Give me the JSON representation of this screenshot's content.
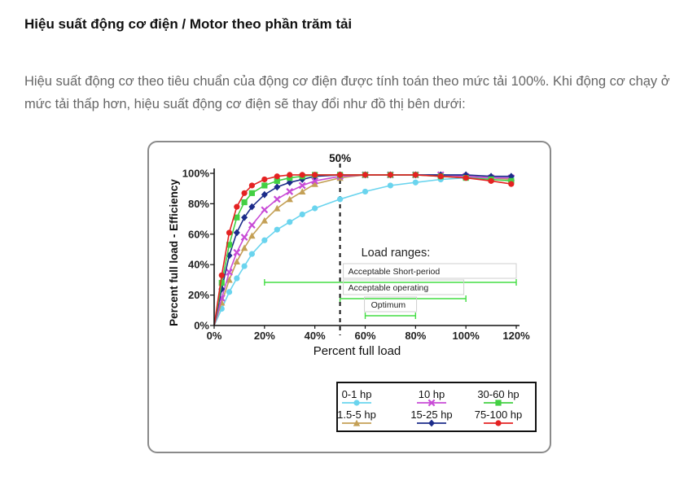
{
  "heading": "Hiệu suất động cơ điện / Motor theo phần trăm tải",
  "paragraph": "Hiệu suất động cơ theo tiêu chuẩn của động cơ điện được tính toán theo mức tải 100%. Khi động cơ chạy ở mức tải thấp hơn, hiệu suất động cơ điện sẽ thay đổi như đồ thị bên dưới:",
  "chart_data": {
    "type": "line",
    "title": "",
    "xlabel": "Percent full load",
    "ylabel": "Percent full load - Efficiency",
    "xlim": [
      0,
      120
    ],
    "ylim": [
      0,
      100
    ],
    "x_ticks": [
      0,
      20,
      40,
      60,
      80,
      100,
      120
    ],
    "x_tick_labels": [
      "0%",
      "20%",
      "40%",
      "60%",
      "80%",
      "100%",
      "120%"
    ],
    "y_ticks": [
      0,
      20,
      40,
      60,
      80,
      100
    ],
    "y_tick_labels": [
      "0%",
      "20%",
      "40%",
      "60%",
      "80%",
      "100%"
    ],
    "grid": false,
    "legend_position": "bottom-right",
    "series": [
      {
        "name": "0-1 hp",
        "color": "#6ad4ee",
        "marker": "circle",
        "x": [
          0,
          3,
          6,
          9,
          12,
          15,
          20,
          25,
          30,
          35,
          40,
          50,
          60,
          70,
          80,
          90,
          100,
          110,
          118
        ],
        "y": [
          0,
          11,
          22,
          31,
          39,
          47,
          56,
          63,
          68,
          73,
          77,
          83,
          88,
          92,
          94,
          96,
          97,
          97,
          97
        ]
      },
      {
        "name": "1.5-5 hp",
        "color": "#c4a056",
        "marker": "triangle",
        "x": [
          0,
          3,
          6,
          9,
          12,
          15,
          20,
          25,
          30,
          35,
          40,
          50,
          60,
          70,
          80,
          90,
          100,
          110,
          118
        ],
        "y": [
          0,
          15,
          30,
          42,
          51,
          59,
          69,
          77,
          83,
          88,
          93,
          97,
          99,
          99,
          99,
          99,
          98,
          97,
          96
        ]
      },
      {
        "name": "10 hp",
        "color": "#c84bd6",
        "marker": "x",
        "x": [
          0,
          3,
          6,
          9,
          12,
          15,
          20,
          25,
          30,
          35,
          40,
          50,
          60,
          70,
          80,
          90,
          100,
          110,
          118
        ],
        "y": [
          0,
          18,
          35,
          48,
          58,
          66,
          76,
          83,
          88,
          92,
          95,
          98,
          99,
          99,
          99,
          99,
          98,
          97,
          97
        ]
      },
      {
        "name": "15-25 hp",
        "color": "#1c2c8a",
        "marker": "diamond",
        "x": [
          0,
          3,
          6,
          9,
          12,
          15,
          20,
          25,
          30,
          35,
          40,
          50,
          60,
          70,
          80,
          90,
          100,
          110,
          118
        ],
        "y": [
          0,
          24,
          46,
          61,
          71,
          78,
          86,
          91,
          94,
          96,
          98,
          99,
          99,
          99,
          99,
          99,
          99,
          98,
          98
        ]
      },
      {
        "name": "30-60 hp",
        "color": "#43d043",
        "marker": "square",
        "x": [
          0,
          3,
          6,
          9,
          12,
          15,
          20,
          25,
          30,
          35,
          40,
          50,
          60,
          70,
          80,
          90,
          100,
          110,
          118
        ],
        "y": [
          0,
          28,
          53,
          71,
          81,
          87,
          92,
          95,
          97,
          98,
          99,
          99,
          99,
          99,
          99,
          98,
          97,
          96,
          95
        ]
      },
      {
        "name": "75-100 hp",
        "color": "#e42222",
        "marker": "circle",
        "x": [
          0,
          3,
          6,
          9,
          12,
          15,
          20,
          25,
          30,
          35,
          40,
          50,
          60,
          70,
          80,
          90,
          100,
          110,
          118
        ],
        "y": [
          0,
          33,
          61,
          78,
          87,
          92,
          96,
          98,
          99,
          99,
          99,
          99,
          99,
          99,
          99,
          98,
          97,
          95,
          93
        ]
      }
    ],
    "reference_line": {
      "x": 50,
      "label": "50%"
    },
    "load_ranges": {
      "title": "Load ranges:",
      "ranges": [
        {
          "label": "Acceptable Short-period",
          "from": 20,
          "to": 120
        },
        {
          "label": "Acceptable operating",
          "from": 50,
          "to": 100
        },
        {
          "label": "Optimum",
          "from": 60,
          "to": 80
        }
      ]
    }
  }
}
